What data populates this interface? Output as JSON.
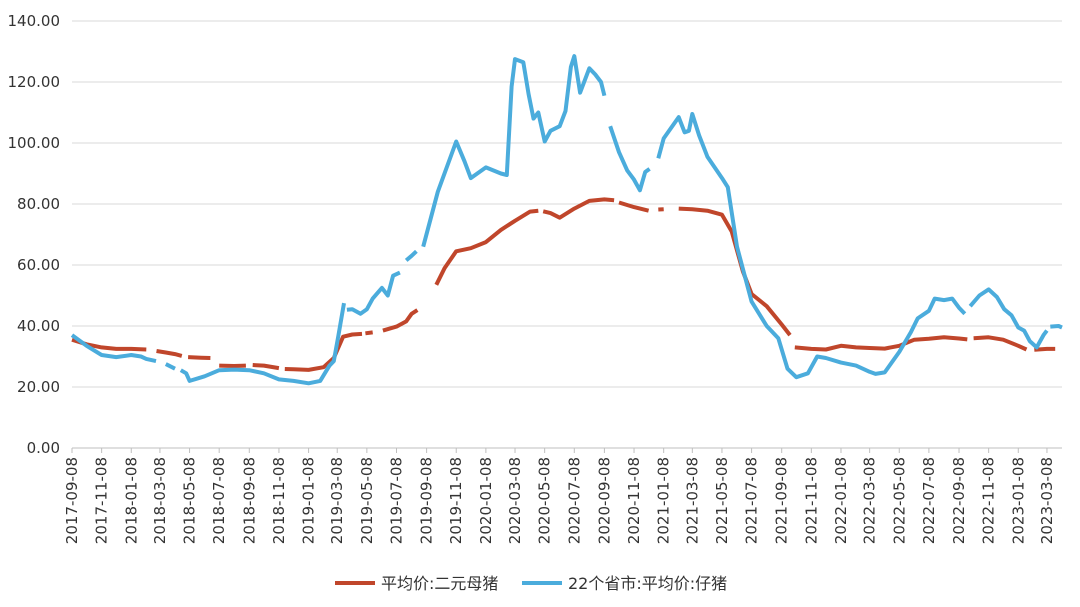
{
  "chart_data": {
    "type": "line",
    "title": "",
    "xlabel": "",
    "ylabel": "",
    "ylim": [
      0,
      140
    ],
    "yticks": [
      "0.00",
      "20.00",
      "40.00",
      "60.00",
      "80.00",
      "100.00",
      "120.00",
      "140.00"
    ],
    "grid": "horizontal",
    "legend": "bottom",
    "x_start": "2017-09-08",
    "x_end": "2023-04-08",
    "x_ticks": [
      "2017-09-08",
      "2017-11-08",
      "2018-01-08",
      "2018-03-08",
      "2018-05-08",
      "2018-07-08",
      "2018-09-08",
      "2018-11-08",
      "2019-01-08",
      "2019-03-08",
      "2019-05-08",
      "2019-07-08",
      "2019-09-08",
      "2019-11-08",
      "2020-01-08",
      "2020-03-08",
      "2020-05-08",
      "2020-07-08",
      "2020-09-08",
      "2020-11-08",
      "2021-01-08",
      "2021-03-08",
      "2021-05-08",
      "2021-07-08",
      "2021-09-08",
      "2021-11-08",
      "2022-01-08",
      "2022-03-08",
      "2022-05-08",
      "2022-07-08",
      "2022-09-08",
      "2022-11-08",
      "2023-01-08",
      "2023-03-08"
    ],
    "series": [
      {
        "name": "平均价:二元母猪",
        "color": "#c0462b",
        "segments": [
          [
            [
              "2017-09-08",
              35.5
            ],
            [
              "2017-10-08",
              34
            ],
            [
              "2017-11-08",
              33
            ],
            [
              "2017-12-08",
              32.5
            ],
            [
              "2018-01-08",
              32.5
            ],
            [
              "2018-02-08",
              32.3
            ]
          ],
          [
            [
              "2018-03-01",
              31.8
            ],
            [
              "2018-03-20",
              31.3
            ],
            [
              "2018-04-08",
              30.8
            ],
            [
              "2018-04-22",
              30.2
            ]
          ],
          [
            [
              "2018-05-05",
              29.8
            ],
            [
              "2018-06-01",
              29.6
            ],
            [
              "2018-06-20",
              29.5
            ]
          ],
          [
            [
              "2018-07-08",
              27
            ],
            [
              "2018-08-08",
              26.9
            ],
            [
              "2018-09-01",
              27.0
            ]
          ],
          [
            [
              "2018-09-15",
              27.2
            ],
            [
              "2018-10-08",
              27.0
            ],
            [
              "2018-11-08",
              26.2
            ]
          ],
          [
            [
              "2018-11-20",
              25.9
            ],
            [
              "2018-12-08",
              25.8
            ],
            [
              "2019-01-08",
              25.6
            ],
            [
              "2019-02-08",
              26.5
            ],
            [
              "2019-03-01",
              29.5
            ],
            [
              "2019-03-20",
              36.5
            ],
            [
              "2019-04-08",
              37.2
            ],
            [
              "2019-04-28",
              37.4
            ]
          ],
          [
            [
              "2019-05-05",
              37.6
            ],
            [
              "2019-05-20",
              37.9
            ]
          ],
          [
            [
              "2019-06-10",
              38.5
            ],
            [
              "2019-07-08",
              39.8
            ],
            [
              "2019-07-28",
              41.5
            ],
            [
              "2019-08-08",
              44.0
            ],
            [
              "2019-08-20",
              45.2
            ]
          ],
          [
            [
              "2019-09-28",
              53.5
            ],
            [
              "2019-10-15",
              59
            ],
            [
              "2019-11-08",
              64.5
            ],
            [
              "2019-12-08",
              65.5
            ],
            [
              "2020-01-08",
              67.5
            ],
            [
              "2020-02-08",
              71.5
            ],
            [
              "2020-03-08",
              74.5
            ],
            [
              "2020-04-08",
              77.5
            ],
            [
              "2020-04-25",
              77.8
            ]
          ],
          [
            [
              "2020-05-05",
              77.6
            ],
            [
              "2020-05-20",
              77.0
            ],
            [
              "2020-06-08",
              75.5
            ],
            [
              "2020-07-08",
              78.5
            ],
            [
              "2020-08-08",
              81.0
            ],
            [
              "2020-09-08",
              81.5
            ],
            [
              "2020-09-28",
              81.2
            ]
          ],
          [
            [
              "2020-10-08",
              80.5
            ],
            [
              "2020-11-08",
              79.0
            ],
            [
              "2020-12-08",
              77.8
            ]
          ],
          [
            [
              "2020-12-28",
              78.2
            ],
            [
              "2021-01-08",
              78.3
            ]
          ],
          [
            [
              "2021-02-08",
              78.5
            ],
            [
              "2021-03-08",
              78.3
            ],
            [
              "2021-04-08",
              77.8
            ],
            [
              "2021-05-08",
              76.5
            ],
            [
              "2021-05-28",
              71.0
            ],
            [
              "2021-06-20",
              58.0
            ],
            [
              "2021-07-08",
              50.5
            ],
            [
              "2021-08-08",
              46.5
            ],
            [
              "2021-09-08",
              40.5
            ],
            [
              "2021-09-25",
              37.0
            ]
          ],
          [
            [
              "2021-10-05",
              33.0
            ],
            [
              "2021-11-08",
              32.5
            ],
            [
              "2021-12-08",
              32.3
            ],
            [
              "2022-01-08",
              33.5
            ],
            [
              "2022-02-08",
              33.0
            ],
            [
              "2022-03-08",
              32.8
            ],
            [
              "2022-04-08",
              32.6
            ],
            [
              "2022-05-08",
              33.5
            ],
            [
              "2022-06-08",
              35.5
            ],
            [
              "2022-07-08",
              35.8
            ],
            [
              "2022-08-08",
              36.3
            ],
            [
              "2022-09-08",
              35.9
            ],
            [
              "2022-09-25",
              35.6
            ]
          ],
          [
            [
              "2022-10-08",
              36.0
            ],
            [
              "2022-11-08",
              36.3
            ],
            [
              "2022-12-08",
              35.5
            ],
            [
              "2023-01-08",
              33.5
            ],
            [
              "2023-01-25",
              32.3
            ]
          ],
          [
            [
              "2023-02-10",
              32.2
            ],
            [
              "2023-03-08",
              32.5
            ],
            [
              "2023-03-25",
              32.5
            ]
          ]
        ]
      },
      {
        "name": "22个省市:平均价:仔猪",
        "color": "#4bacdc",
        "segments": [
          [
            [
              "2017-09-08",
              37.0
            ],
            [
              "2017-10-08",
              33.5
            ],
            [
              "2017-11-08",
              30.5
            ],
            [
              "2017-12-08",
              29.8
            ],
            [
              "2018-01-08",
              30.5
            ],
            [
              "2018-01-28",
              30.0
            ],
            [
              "2018-02-08",
              29.2
            ],
            [
              "2018-02-28",
              28.5
            ]
          ],
          [
            [
              "2018-03-20",
              27.5
            ],
            [
              "2018-04-08",
              26.0
            ]
          ],
          [
            [
              "2018-04-20",
              25.5
            ],
            [
              "2018-05-01",
              24.5
            ],
            [
              "2018-05-08",
              22.0
            ],
            [
              "2018-06-08",
              23.5
            ],
            [
              "2018-07-08",
              25.5
            ],
            [
              "2018-08-08",
              25.7
            ],
            [
              "2018-09-08",
              25.5
            ],
            [
              "2018-10-08",
              24.5
            ],
            [
              "2018-11-08",
              22.5
            ],
            [
              "2018-12-08",
              22.0
            ],
            [
              "2019-01-08",
              21.2
            ],
            [
              "2019-02-01",
              22.0
            ],
            [
              "2019-02-20",
              27.0
            ],
            [
              "2019-03-01",
              28.5
            ],
            [
              "2019-03-10",
              36.5
            ],
            [
              "2019-03-22",
              47.5
            ]
          ],
          [
            [
              "2019-03-28",
              45.3
            ],
            [
              "2019-04-08",
              45.5
            ],
            [
              "2019-04-25",
              44.0
            ],
            [
              "2019-05-08",
              45.5
            ],
            [
              "2019-05-20",
              49.0
            ],
            [
              "2019-06-08",
              52.5
            ],
            [
              "2019-06-20",
              50.0
            ],
            [
              "2019-07-01",
              56.5
            ],
            [
              "2019-07-15",
              57.5
            ]
          ],
          [
            [
              "2019-07-28",
              61.5
            ],
            [
              "2019-08-08",
              63.0
            ],
            [
              "2019-08-18",
              64.5
            ]
          ],
          [
            [
              "2019-09-01",
              66.0
            ],
            [
              "2019-10-01",
              84.0
            ],
            [
              "2019-11-08",
              100.5
            ],
            [
              "2019-11-25",
              94.0
            ],
            [
              "2019-12-08",
              88.5
            ],
            [
              "2020-01-08",
              92.0
            ],
            [
              "2020-02-08",
              90.0
            ],
            [
              "2020-02-20",
              89.5
            ],
            [
              "2020-03-01",
              118.5
            ],
            [
              "2020-03-08",
              127.5
            ],
            [
              "2020-03-25",
              126.5
            ],
            [
              "2020-04-05",
              116.0
            ],
            [
              "2020-04-15",
              108.0
            ],
            [
              "2020-04-25",
              110.0
            ],
            [
              "2020-05-08",
              100.5
            ],
            [
              "2020-05-20",
              104.0
            ],
            [
              "2020-06-08",
              105.5
            ],
            [
              "2020-06-20",
              110.5
            ],
            [
              "2020-07-01",
              125.0
            ],
            [
              "2020-07-08",
              128.5
            ],
            [
              "2020-07-20",
              116.5
            ],
            [
              "2020-08-08",
              124.5
            ],
            [
              "2020-08-20",
              122.5
            ],
            [
              "2020-09-01",
              120.0
            ],
            [
              "2020-09-08",
              115.5
            ]
          ],
          [
            [
              "2020-09-20",
              105.5
            ],
            [
              "2020-10-08",
              97.0
            ],
            [
              "2020-10-25",
              91.0
            ],
            [
              "2020-11-08",
              88.0
            ],
            [
              "2020-11-20",
              84.5
            ],
            [
              "2020-12-01",
              90.5
            ],
            [
              "2020-12-10",
              91.5
            ]
          ],
          [
            [
              "2020-12-28",
              95.0
            ],
            [
              "2021-01-08",
              101.5
            ],
            [
              "2021-02-08",
              108.5
            ],
            [
              "2021-02-20",
              103.5
            ],
            [
              "2021-03-01",
              104.0
            ],
            [
              "2021-03-08",
              109.5
            ],
            [
              "2021-03-22",
              102.5
            ],
            [
              "2021-04-08",
              95.5
            ],
            [
              "2021-05-08",
              88.5
            ],
            [
              "2021-05-20",
              85.5
            ],
            [
              "2021-06-08",
              66.0
            ],
            [
              "2021-07-08",
              48.0
            ],
            [
              "2021-08-08",
              40.0
            ],
            [
              "2021-09-01",
              36.0
            ],
            [
              "2021-09-20",
              26.0
            ],
            [
              "2021-10-08",
              23.2
            ],
            [
              "2021-11-01",
              24.5
            ],
            [
              "2021-11-20",
              30.0
            ],
            [
              "2021-12-08",
              29.5
            ],
            [
              "2022-01-08",
              28.0
            ],
            [
              "2022-02-08",
              27.0
            ],
            [
              "2022-03-08",
              25.0
            ],
            [
              "2022-03-20",
              24.3
            ],
            [
              "2022-04-08",
              24.8
            ],
            [
              "2022-05-08",
              31.5
            ],
            [
              "2022-06-01",
              38.0
            ],
            [
              "2022-06-15",
              42.5
            ],
            [
              "2022-07-08",
              45.0
            ],
            [
              "2022-07-20",
              49.0
            ],
            [
              "2022-08-08",
              48.5
            ],
            [
              "2022-08-25",
              49.0
            ],
            [
              "2022-09-08",
              46.0
            ],
            [
              "2022-09-20",
              44.0
            ]
          ],
          [
            [
              "2022-10-01",
              46.5
            ],
            [
              "2022-10-20",
              50.0
            ],
            [
              "2022-11-08",
              52.0
            ],
            [
              "2022-11-25",
              49.5
            ],
            [
              "2022-12-10",
              45.5
            ],
            [
              "2022-12-25",
              43.5
            ],
            [
              "2023-01-08",
              39.5
            ],
            [
              "2023-01-20",
              38.5
            ],
            [
              "2023-02-01",
              35.0
            ],
            [
              "2023-02-15",
              33.0
            ],
            [
              "2023-03-01",
              37.0
            ],
            [
              "2023-03-08",
              38.5
            ]
          ],
          [
            [
              "2023-03-15",
              39.8
            ],
            [
              "2023-04-01",
              40.0
            ],
            [
              "2023-04-08",
              39.5
            ]
          ]
        ]
      }
    ]
  },
  "legend": {
    "items": [
      "平均价:二元母猪",
      "22个省市:平均价:仔猪"
    ]
  }
}
